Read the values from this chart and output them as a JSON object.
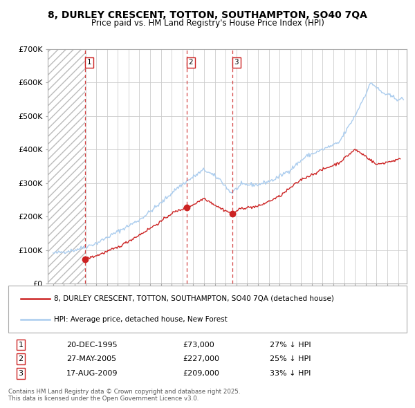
{
  "title": "8, DURLEY CRESCENT, TOTTON, SOUTHAMPTON, SO40 7QA",
  "subtitle": "Price paid vs. HM Land Registry's House Price Index (HPI)",
  "background_color": "#ffffff",
  "plot_bg_color": "#ffffff",
  "hatch_color": "#dddddd",
  "grid_color": "#cccccc",
  "hpi_color": "#aaccee",
  "price_color": "#cc2222",
  "transactions": [
    {
      "date": 1995.97,
      "price": 73000,
      "label": "1"
    },
    {
      "date": 2005.4,
      "price": 227000,
      "label": "2"
    },
    {
      "date": 2009.63,
      "price": 209000,
      "label": "3"
    }
  ],
  "sale_labels": [
    {
      "num": "1",
      "date": "20-DEC-1995",
      "price": "£73,000",
      "note": "27% ↓ HPI"
    },
    {
      "num": "2",
      "date": "27-MAY-2005",
      "price": "£227,000",
      "note": "25% ↓ HPI"
    },
    {
      "num": "3",
      "date": "17-AUG-2009",
      "price": "£209,000",
      "note": "33% ↓ HPI"
    }
  ],
  "ylim": [
    0,
    700000
  ],
  "yticks": [
    0,
    100000,
    200000,
    300000,
    400000,
    500000,
    600000,
    700000
  ],
  "ytick_labels": [
    "£0",
    "£100K",
    "£200K",
    "£300K",
    "£400K",
    "£500K",
    "£600K",
    "£700K"
  ],
  "xlim_start": 1992.5,
  "xlim_end": 2025.8,
  "legend_labels": [
    "8, DURLEY CRESCENT, TOTTON, SOUTHAMPTON, SO40 7QA (detached house)",
    "HPI: Average price, detached house, New Forest"
  ],
  "footer": "Contains HM Land Registry data © Crown copyright and database right 2025.\nThis data is licensed under the Open Government Licence v3.0.",
  "hatch_end": 1995.97
}
